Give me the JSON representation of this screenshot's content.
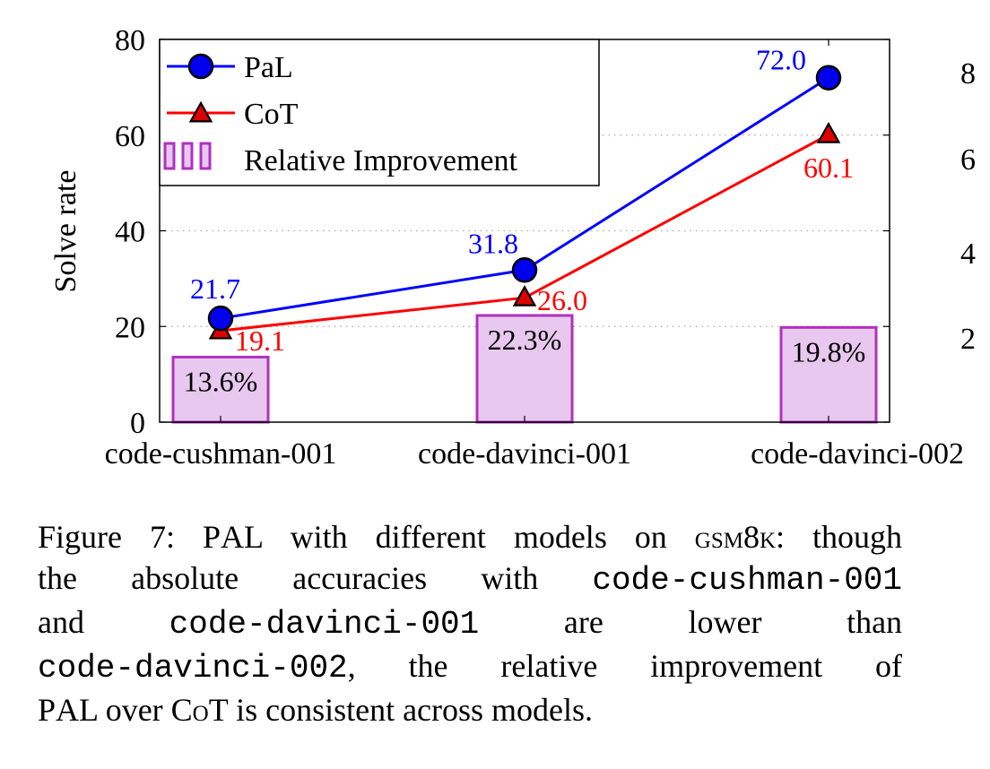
{
  "chart_data": {
    "type": "bar+line",
    "categories": [
      "code-cushman-001",
      "code-davinci-001",
      "code-davinci-002"
    ],
    "ylabel": "Solve rate",
    "ylim": [
      0,
      80
    ],
    "yticks": [
      0,
      20,
      40,
      60,
      80
    ],
    "grid": "horizontal dotted",
    "legend_position": "top-left",
    "series": [
      {
        "name": "PaL",
        "type": "line",
        "marker": "circle",
        "color": "#0000ff",
        "values": [
          21.7,
          31.8,
          72.0
        ],
        "labels": [
          "21.7",
          "31.8",
          "72.0"
        ]
      },
      {
        "name": "CoT",
        "type": "line",
        "marker": "triangle",
        "color": "#ff0000",
        "values": [
          19.1,
          26.0,
          60.1
        ],
        "labels": [
          "19.1",
          "26.0",
          "60.1"
        ]
      },
      {
        "name": "Relative Improvement",
        "type": "bar",
        "color": "#e8c8ee",
        "edge_color": "#b030c0",
        "values": [
          13.6,
          22.3,
          19.8
        ],
        "labels": [
          "13.6%",
          "22.3%",
          "19.8%"
        ]
      }
    ]
  },
  "caption": {
    "figure_label": "Figure 7:",
    "pal_p": "P",
    "pal_rest": "A",
    "pal_l": "L",
    "text1": " with different models on ",
    "dataset": "gsm8k",
    "text2": ": though",
    "line2_a": "the absolute accuracies with ",
    "model1": "code-cushman-001",
    "line3_and": "and",
    "model2": "code-davinci-001",
    "line3_are": "are",
    "line3_lower": "lower",
    "line3_than": "than",
    "model3": "code-davinci-002",
    "line4_rest": ", the relative improvement of",
    "line5_rest": " over ",
    "cot_c": "C",
    "cot_o": "o",
    "cot_t": "T",
    "line5_end": " is consistent across models."
  },
  "clipped_ticks": [
    "8",
    "6",
    "4",
    "2"
  ]
}
